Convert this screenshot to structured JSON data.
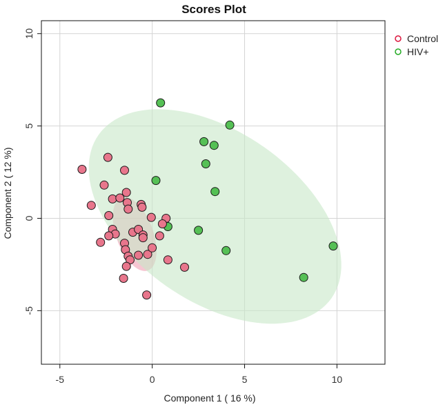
{
  "chart_data": {
    "type": "scatter",
    "title": "Scores Plot",
    "xlabel": "Component 1 ( 16 %)",
    "ylabel": "Component 2 ( 12 %)",
    "xlim": [
      -6.0,
      12.6
    ],
    "ylim": [
      -7.9,
      10.7
    ],
    "xticks": [
      -5,
      0,
      5,
      10
    ],
    "yticks": [
      -5,
      0,
      5,
      10
    ],
    "grid": true,
    "legend_position": "top-right",
    "series": [
      {
        "name": "Control",
        "color": "#dc143c",
        "fill": "#e8768c",
        "ellipse": {
          "center": [
            -0.95,
            -0.85
          ],
          "sd_major": 2.1,
          "sd_minor": 1.0,
          "angle_deg": -70,
          "fill": "#f0a0b4"
        },
        "points": [
          [
            -3.8,
            2.65
          ],
          [
            -2.4,
            3.3
          ],
          [
            -1.5,
            2.6
          ],
          [
            -2.6,
            1.8
          ],
          [
            -3.3,
            0.7
          ],
          [
            -2.15,
            1.05
          ],
          [
            -1.75,
            1.1
          ],
          [
            -1.4,
            1.4
          ],
          [
            -1.35,
            0.85
          ],
          [
            -1.3,
            0.5
          ],
          [
            -0.6,
            0.75
          ],
          [
            -0.55,
            0.6
          ],
          [
            -0.05,
            0.05
          ],
          [
            0.75,
            0.0
          ],
          [
            0.55,
            -0.3
          ],
          [
            -2.35,
            0.15
          ],
          [
            -2.15,
            -0.6
          ],
          [
            -2.0,
            -0.85
          ],
          [
            -2.35,
            -0.95
          ],
          [
            -2.8,
            -1.3
          ],
          [
            -1.5,
            -1.35
          ],
          [
            -1.45,
            -1.7
          ],
          [
            -1.3,
            -2.05
          ],
          [
            -1.2,
            -2.25
          ],
          [
            -1.4,
            -2.6
          ],
          [
            -1.05,
            -0.75
          ],
          [
            -0.75,
            -0.6
          ],
          [
            -0.5,
            -0.9
          ],
          [
            -0.5,
            -1.05
          ],
          [
            -0.75,
            -2.0
          ],
          [
            -0.25,
            -1.95
          ],
          [
            0.0,
            -1.6
          ],
          [
            0.4,
            -0.95
          ],
          [
            0.85,
            -2.25
          ],
          [
            1.75,
            -2.65
          ],
          [
            -1.55,
            -3.25
          ],
          [
            -0.3,
            -4.15
          ]
        ]
      },
      {
        "name": "HIV+",
        "color": "#22aa22",
        "fill": "#55c055",
        "ellipse": {
          "center": [
            3.4,
            0.1
          ],
          "sd_major": 7.7,
          "sd_minor": 4.6,
          "angle_deg": -35,
          "fill": "#c8e8c8"
        },
        "points": [
          [
            0.45,
            6.25
          ],
          [
            4.2,
            5.05
          ],
          [
            2.8,
            4.15
          ],
          [
            3.35,
            3.95
          ],
          [
            2.9,
            2.95
          ],
          [
            0.2,
            2.05
          ],
          [
            3.4,
            1.45
          ],
          [
            0.85,
            -0.45
          ],
          [
            2.5,
            -0.65
          ],
          [
            4.0,
            -1.75
          ],
          [
            9.8,
            -1.5
          ],
          [
            8.2,
            -3.2
          ]
        ]
      }
    ]
  }
}
